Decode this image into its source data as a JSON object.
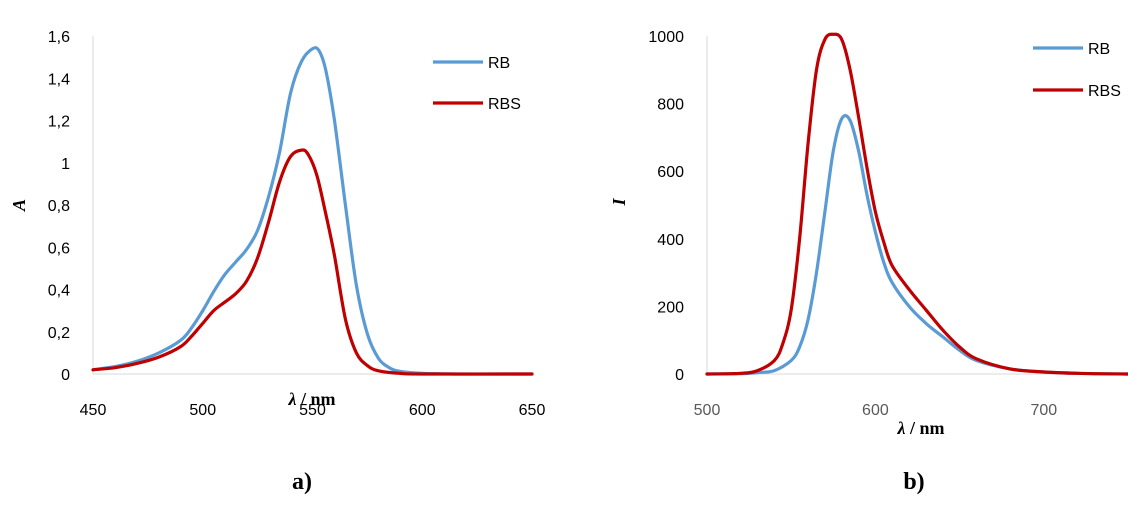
{
  "chart_data": [
    {
      "type": "line",
      "panel_label": "a)",
      "xlabel_symbol": "λ",
      "xlabel_unit": " / nm",
      "ylabel": "A",
      "xlim": [
        450,
        650
      ],
      "ylim": [
        0,
        1.6
      ],
      "xticks": [
        "450",
        "500",
        "550",
        "600",
        "650"
      ],
      "yticks": [
        "0",
        "0,2",
        "0,4",
        "0,6",
        "0,8",
        "1",
        "1,2",
        "1,4",
        "1,6"
      ],
      "legend_position": "top-right",
      "grid": false,
      "series": [
        {
          "name": "RB",
          "color": "#5B9BD5",
          "x": [
            450,
            460,
            470,
            480,
            490,
            495,
            500,
            505,
            510,
            515,
            520,
            525,
            530,
            535,
            540,
            545,
            550,
            553,
            556,
            560,
            565,
            570,
            575,
            580,
            585,
            590,
            600,
            610,
            620,
            650
          ],
          "y": [
            0.02,
            0.035,
            0.06,
            0.1,
            0.16,
            0.22,
            0.3,
            0.39,
            0.47,
            0.53,
            0.59,
            0.68,
            0.84,
            1.05,
            1.33,
            1.48,
            1.54,
            1.53,
            1.44,
            1.2,
            0.8,
            0.42,
            0.19,
            0.075,
            0.03,
            0.012,
            0.003,
            0.001,
            0.0,
            0.0
          ]
        },
        {
          "name": "RBS",
          "color": "#C00000",
          "x": [
            450,
            460,
            470,
            480,
            490,
            495,
            500,
            505,
            510,
            515,
            520,
            525,
            530,
            535,
            540,
            545,
            548,
            552,
            556,
            560,
            565,
            570,
            575,
            580,
            590,
            600,
            650
          ],
          "y": [
            0.02,
            0.03,
            0.05,
            0.08,
            0.13,
            0.18,
            0.24,
            0.3,
            0.34,
            0.38,
            0.44,
            0.55,
            0.72,
            0.91,
            1.03,
            1.06,
            1.04,
            0.94,
            0.76,
            0.56,
            0.26,
            0.1,
            0.04,
            0.015,
            0.003,
            0.0,
            0.0
          ]
        }
      ]
    },
    {
      "type": "line",
      "panel_label": "b)",
      "xlabel_symbol": "λ",
      "xlabel_unit": " / nm",
      "ylabel": "I",
      "xlim": [
        500,
        750
      ],
      "ylim": [
        0,
        1000
      ],
      "xticks": [
        "500",
        "600",
        "700"
      ],
      "yticks": [
        "0",
        "200",
        "400",
        "600",
        "800",
        "1000"
      ],
      "legend_position": "top-right",
      "grid": false,
      "series": [
        {
          "name": "RB",
          "color": "#5B9BD5",
          "x": [
            500,
            520,
            530,
            540,
            550,
            555,
            560,
            565,
            570,
            575,
            580,
            585,
            590,
            595,
            600,
            605,
            610,
            620,
            630,
            640,
            650,
            660,
            680,
            700,
            720,
            750
          ],
          "y": [
            0,
            1,
            4,
            10,
            40,
            80,
            160,
            300,
            480,
            660,
            755,
            750,
            660,
            530,
            420,
            330,
            270,
            200,
            150,
            110,
            70,
            40,
            15,
            6,
            2,
            0
          ]
        },
        {
          "name": "RBS",
          "color": "#C00000",
          "x": [
            500,
            520,
            530,
            540,
            545,
            550,
            555,
            560,
            565,
            570,
            575,
            580,
            585,
            590,
            595,
            600,
            605,
            610,
            620,
            630,
            640,
            650,
            660,
            680,
            700,
            720,
            750
          ],
          "y": [
            0,
            2,
            10,
            40,
            90,
            190,
            400,
            680,
            900,
            990,
            1005,
            990,
            900,
            760,
            610,
            480,
            390,
            320,
            250,
            190,
            130,
            80,
            45,
            15,
            6,
            2,
            0
          ]
        }
      ]
    }
  ]
}
